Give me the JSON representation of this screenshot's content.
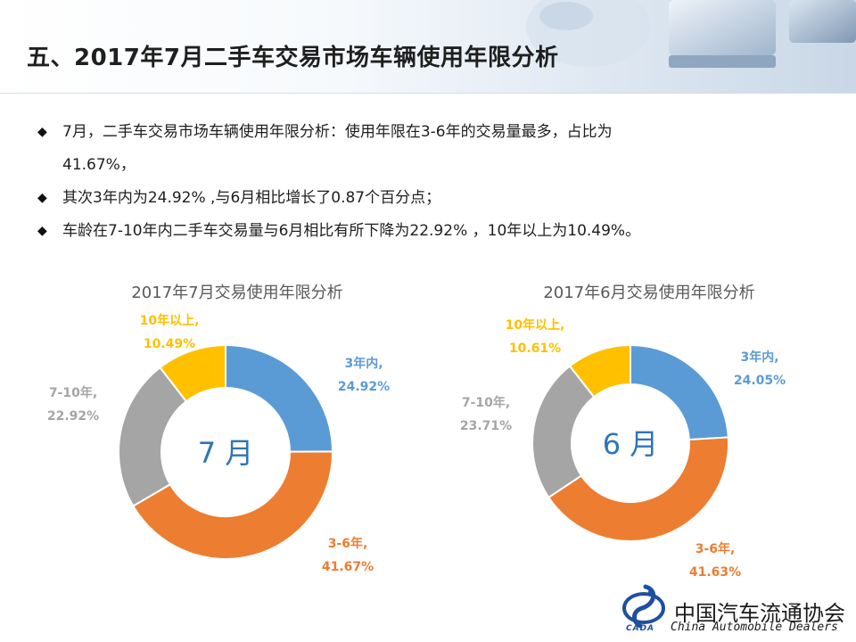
{
  "header": {
    "title": "五、2017年7月二手车交易市场车辆使用年限分析"
  },
  "bullets": [
    "7月，二手车交易市场车辆使用年限分析：使用年限在3-6年的交易量最多，占比为",
    "41.67%，",
    "其次3年内为24.92% ,与6月相比增长了0.87个百分点；",
    "车龄在7-10年内二手车交易量与6月相比有所下降为22.92% ，10年以上为10.49%。"
  ],
  "chart_data": [
    {
      "type": "pie",
      "variant": "donut",
      "title": "2017年7月交易使用年限分析",
      "center_label": "7 月",
      "slices": [
        {
          "name": "3年内",
          "value": 24.92,
          "label": "24.92%",
          "color": "#5b9bd5"
        },
        {
          "name": "3-6年",
          "value": 41.67,
          "label": "41.67%",
          "color": "#ed7d31"
        },
        {
          "name": "7-10年",
          "value": 22.92,
          "label": "22.92%",
          "color": "#a5a5a5"
        },
        {
          "name": "10年以上",
          "value": 10.49,
          "label": "10.49%",
          "color": "#ffc000"
        }
      ]
    },
    {
      "type": "pie",
      "variant": "donut",
      "title": "2017年6月交易使用年限分析",
      "center_label": "6 月",
      "slices": [
        {
          "name": "3年内",
          "value": 24.05,
          "label": "24.05%",
          "color": "#5b9bd5"
        },
        {
          "name": "3-6年",
          "value": 41.63,
          "label": "41.63%",
          "color": "#ed7d31"
        },
        {
          "name": "7-10年",
          "value": 23.71,
          "label": "23.71%",
          "color": "#a5a5a5"
        },
        {
          "name": "10年以上",
          "value": 10.61,
          "label": "10.61%",
          "color": "#ffc000"
        }
      ]
    }
  ],
  "footer": {
    "org_cn": "中国汽车流通协会",
    "org_en": "China Automobile Dealers",
    "logo_text": "CADA"
  }
}
